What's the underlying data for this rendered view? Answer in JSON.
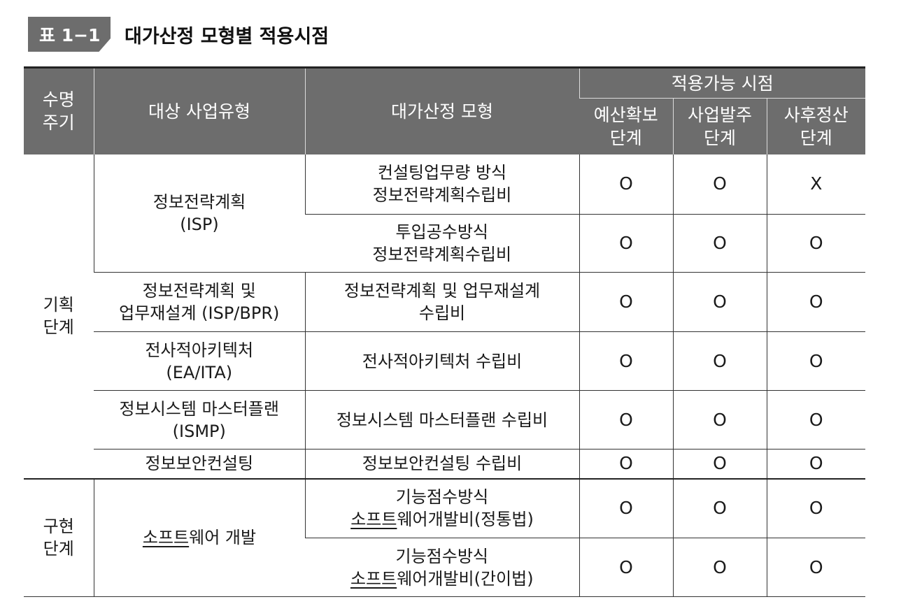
{
  "caption": {
    "label": "표 1−1",
    "title": "대가산정 모형별 적용시점"
  },
  "header": {
    "col_lifecycle": "수명\n주기",
    "col_project_type": "대상 사업유형",
    "col_model": "대가산정 모형",
    "col_timing_group": "적용가능 시점",
    "col_budget": "예산확보\n단계",
    "col_order": "사업발주\n단계",
    "col_settlement": "사후정산\n단계"
  },
  "phases": [
    {
      "name": "기획\n단계"
    },
    {
      "name": "구현\n단계"
    }
  ],
  "project_types": [
    {
      "name": "정보전략계획\n(ISP)"
    },
    {
      "name": "정보전략계획 및\n업무재설계 (ISP/BPR)"
    },
    {
      "name": "전사적아키텍처\n(EA/ITA)"
    },
    {
      "name": "정보시스템 마스터플랜\n(ISMP)"
    },
    {
      "name": "정보보안컨설팅"
    },
    {
      "name_underlined": "소프트",
      "name_rest": "웨어 개발"
    }
  ],
  "rows": [
    {
      "model": "컨설팅업무량 방식\n정보전략계획수립비",
      "budget": "O",
      "order": "O",
      "settlement": "X"
    },
    {
      "model": "투입공수방식\n정보전략계획수립비",
      "budget": "O",
      "order": "O",
      "settlement": "O"
    },
    {
      "model": "정보전략계획 및 업무재설계\n수립비",
      "budget": "O",
      "order": "O",
      "settlement": "O"
    },
    {
      "model": "전사적아키텍처 수립비",
      "budget": "O",
      "order": "O",
      "settlement": "O"
    },
    {
      "model": "정보시스템 마스터플랜 수립비",
      "budget": "O",
      "order": "O",
      "settlement": "O"
    },
    {
      "model": "정보보안컨설팅 수립비",
      "budget": "O",
      "order": "O",
      "settlement": "O"
    },
    {
      "model_line1": "기능점수방식",
      "model_line2_underlined": "소프트",
      "model_line2_rest": "웨어개발비(정통법)",
      "budget": "O",
      "order": "O",
      "settlement": "O"
    },
    {
      "model_line1": "기능점수방식",
      "model_line2_underlined": "소프트",
      "model_line2_rest": "웨어개발비(간이법)",
      "budget": "O",
      "order": "O",
      "settlement": "O"
    }
  ]
}
